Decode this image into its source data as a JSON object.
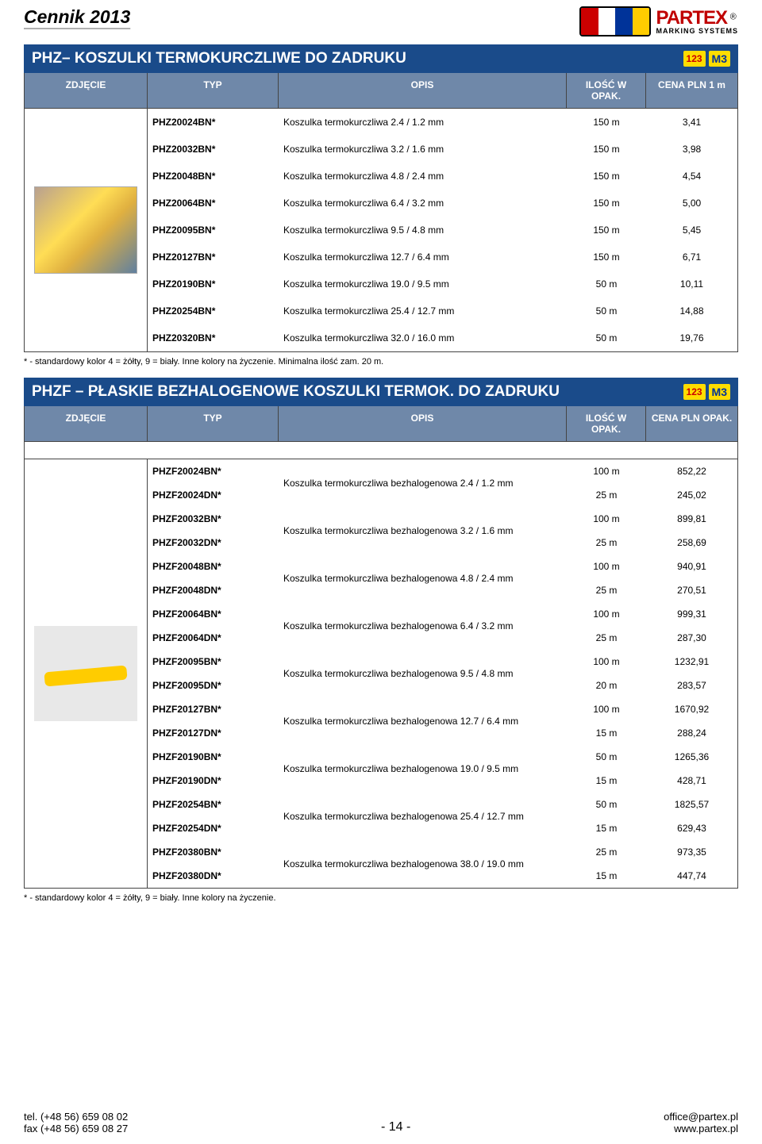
{
  "header": {
    "title": "Cennik 2013",
    "logo_brand": "PARTEX",
    "logo_sub": "MARKING SYSTEMS",
    "logo_reg": "®"
  },
  "section1": {
    "title": "PHZ– KOSZULKI TERMOKURCZLIWE DO ZADRUKU",
    "badge_num": "123",
    "badge_m3": "M3",
    "columns": {
      "img": "ZDJĘCIE",
      "typ": "TYP",
      "opis": "OPIS",
      "qty": "ILOŚĆ W OPAK.",
      "price": "CENA PLN 1 m"
    },
    "rows": [
      {
        "typ": "PHZ20024BN*",
        "opis": "Koszulka termokurczliwa 2.4 / 1.2 mm",
        "qty": "150 m",
        "price": "3,41"
      },
      {
        "typ": "PHZ20032BN*",
        "opis": "Koszulka termokurczliwa 3.2 / 1.6 mm",
        "qty": "150 m",
        "price": "3,98"
      },
      {
        "typ": "PHZ20048BN*",
        "opis": "Koszulka termokurczliwa 4.8 / 2.4 mm",
        "qty": "150 m",
        "price": "4,54"
      },
      {
        "typ": "PHZ20064BN*",
        "opis": "Koszulka termokurczliwa 6.4 / 3.2 mm",
        "qty": "150 m",
        "price": "5,00"
      },
      {
        "typ": "PHZ20095BN*",
        "opis": "Koszulka termokurczliwa 9.5 / 4.8 mm",
        "qty": "150 m",
        "price": "5,45"
      },
      {
        "typ": "PHZ20127BN*",
        "opis": "Koszulka termokurczliwa 12.7 / 6.4 mm",
        "qty": "150 m",
        "price": "6,71"
      },
      {
        "typ": "PHZ20190BN*",
        "opis": "Koszulka termokurczliwa 19.0 / 9.5 mm",
        "qty": "50 m",
        "price": "10,11"
      },
      {
        "typ": "PHZ20254BN*",
        "opis": "Koszulka termokurczliwa 25.4 / 12.7 mm",
        "qty": "50 m",
        "price": "14,88"
      },
      {
        "typ": "PHZ20320BN*",
        "opis": "Koszulka termokurczliwa 32.0 / 16.0 mm",
        "qty": "50 m",
        "price": "19,76"
      }
    ],
    "footnote": "* - standardowy kolor 4 = żółty, 9 = biały. Inne kolory na życzenie. Minimalna ilość zam. 20 m."
  },
  "section2": {
    "title": "PHZF – PŁASKIE BEZHALOGENOWE KOSZULKI TERMOK. DO ZADRUKU",
    "badge_num": "123",
    "badge_m3": "M3",
    "columns": {
      "img": "ZDJĘCIE",
      "typ": "TYP",
      "opis": "OPIS",
      "qty": "ILOŚĆ W OPAK.",
      "price": "CENA PLN OPAK."
    },
    "groups": [
      {
        "typ": [
          "PHZF20024BN*",
          "PHZF20024DN*"
        ],
        "opis": "Koszulka termokurczliwa bezhalogenowa 2.4 / 1.2 mm",
        "qty": [
          "100 m",
          "25 m"
        ],
        "price": [
          "852,22",
          "245,02"
        ]
      },
      {
        "typ": [
          "PHZF20032BN*",
          "PHZF20032DN*"
        ],
        "opis": "Koszulka termokurczliwa bezhalogenowa 3.2 / 1.6 mm",
        "qty": [
          "100 m",
          "25 m"
        ],
        "price": [
          "899,81",
          "258,69"
        ]
      },
      {
        "typ": [
          "PHZF20048BN*",
          "PHZF20048DN*"
        ],
        "opis": "Koszulka termokurczliwa bezhalogenowa 4.8 / 2.4 mm",
        "qty": [
          "100 m",
          "25 m"
        ],
        "price": [
          "940,91",
          "270,51"
        ]
      },
      {
        "typ": [
          "PHZF20064BN*",
          "PHZF20064DN*"
        ],
        "opis": "Koszulka termokurczliwa bezhalogenowa 6.4 / 3.2 mm",
        "qty": [
          "100 m",
          "25 m"
        ],
        "price": [
          "999,31",
          "287,30"
        ]
      },
      {
        "typ": [
          "PHZF20095BN*",
          "PHZF20095DN*"
        ],
        "opis": "Koszulka termokurczliwa bezhalogenowa 9.5 / 4.8 mm",
        "qty": [
          "100 m",
          "20 m"
        ],
        "price": [
          "1232,91",
          "283,57"
        ]
      },
      {
        "typ": [
          "PHZF20127BN*",
          "PHZF20127DN*"
        ],
        "opis": "Koszulka termokurczliwa bezhalogenowa 12.7 / 6.4 mm",
        "qty": [
          "100 m",
          "15 m"
        ],
        "price": [
          "1670,92",
          "288,24"
        ]
      },
      {
        "typ": [
          "PHZF20190BN*",
          "PHZF20190DN*"
        ],
        "opis": "Koszulka termokurczliwa bezhalogenowa 19.0 / 9.5 mm",
        "qty": [
          "50 m",
          "15 m"
        ],
        "price": [
          "1265,36",
          "428,71"
        ]
      },
      {
        "typ": [
          "PHZF20254BN*",
          "PHZF20254DN*"
        ],
        "opis": "Koszulka termokurczliwa bezhalogenowa 25.4 / 12.7 mm",
        "qty": [
          "50 m",
          "15 m"
        ],
        "price": [
          "1825,57",
          "629,43"
        ]
      },
      {
        "typ": [
          "PHZF20380BN*",
          "PHZF20380DN*"
        ],
        "opis": "Koszulka termokurczliwa bezhalogenowa 38.0 / 19.0 mm",
        "qty": [
          "25 m",
          "15 m"
        ],
        "price": [
          "973,35",
          "447,74"
        ]
      }
    ],
    "footnote": "* - standardowy kolor 4 = żółty, 9 = biały. Inne kolory na życzenie."
  },
  "footer": {
    "left1": "tel. (+48 56) 659 08 02",
    "left2": "fax (+48 56) 659 08 27",
    "center": "- 14 -",
    "right1": "office@partex.pl",
    "right2": "www.partex.pl"
  },
  "colors": {
    "header_bg": "#1a4b8a",
    "subheader_bg": "#6f88a9",
    "badge_bg": "#ffdd00",
    "brand_red": "#c00000"
  }
}
